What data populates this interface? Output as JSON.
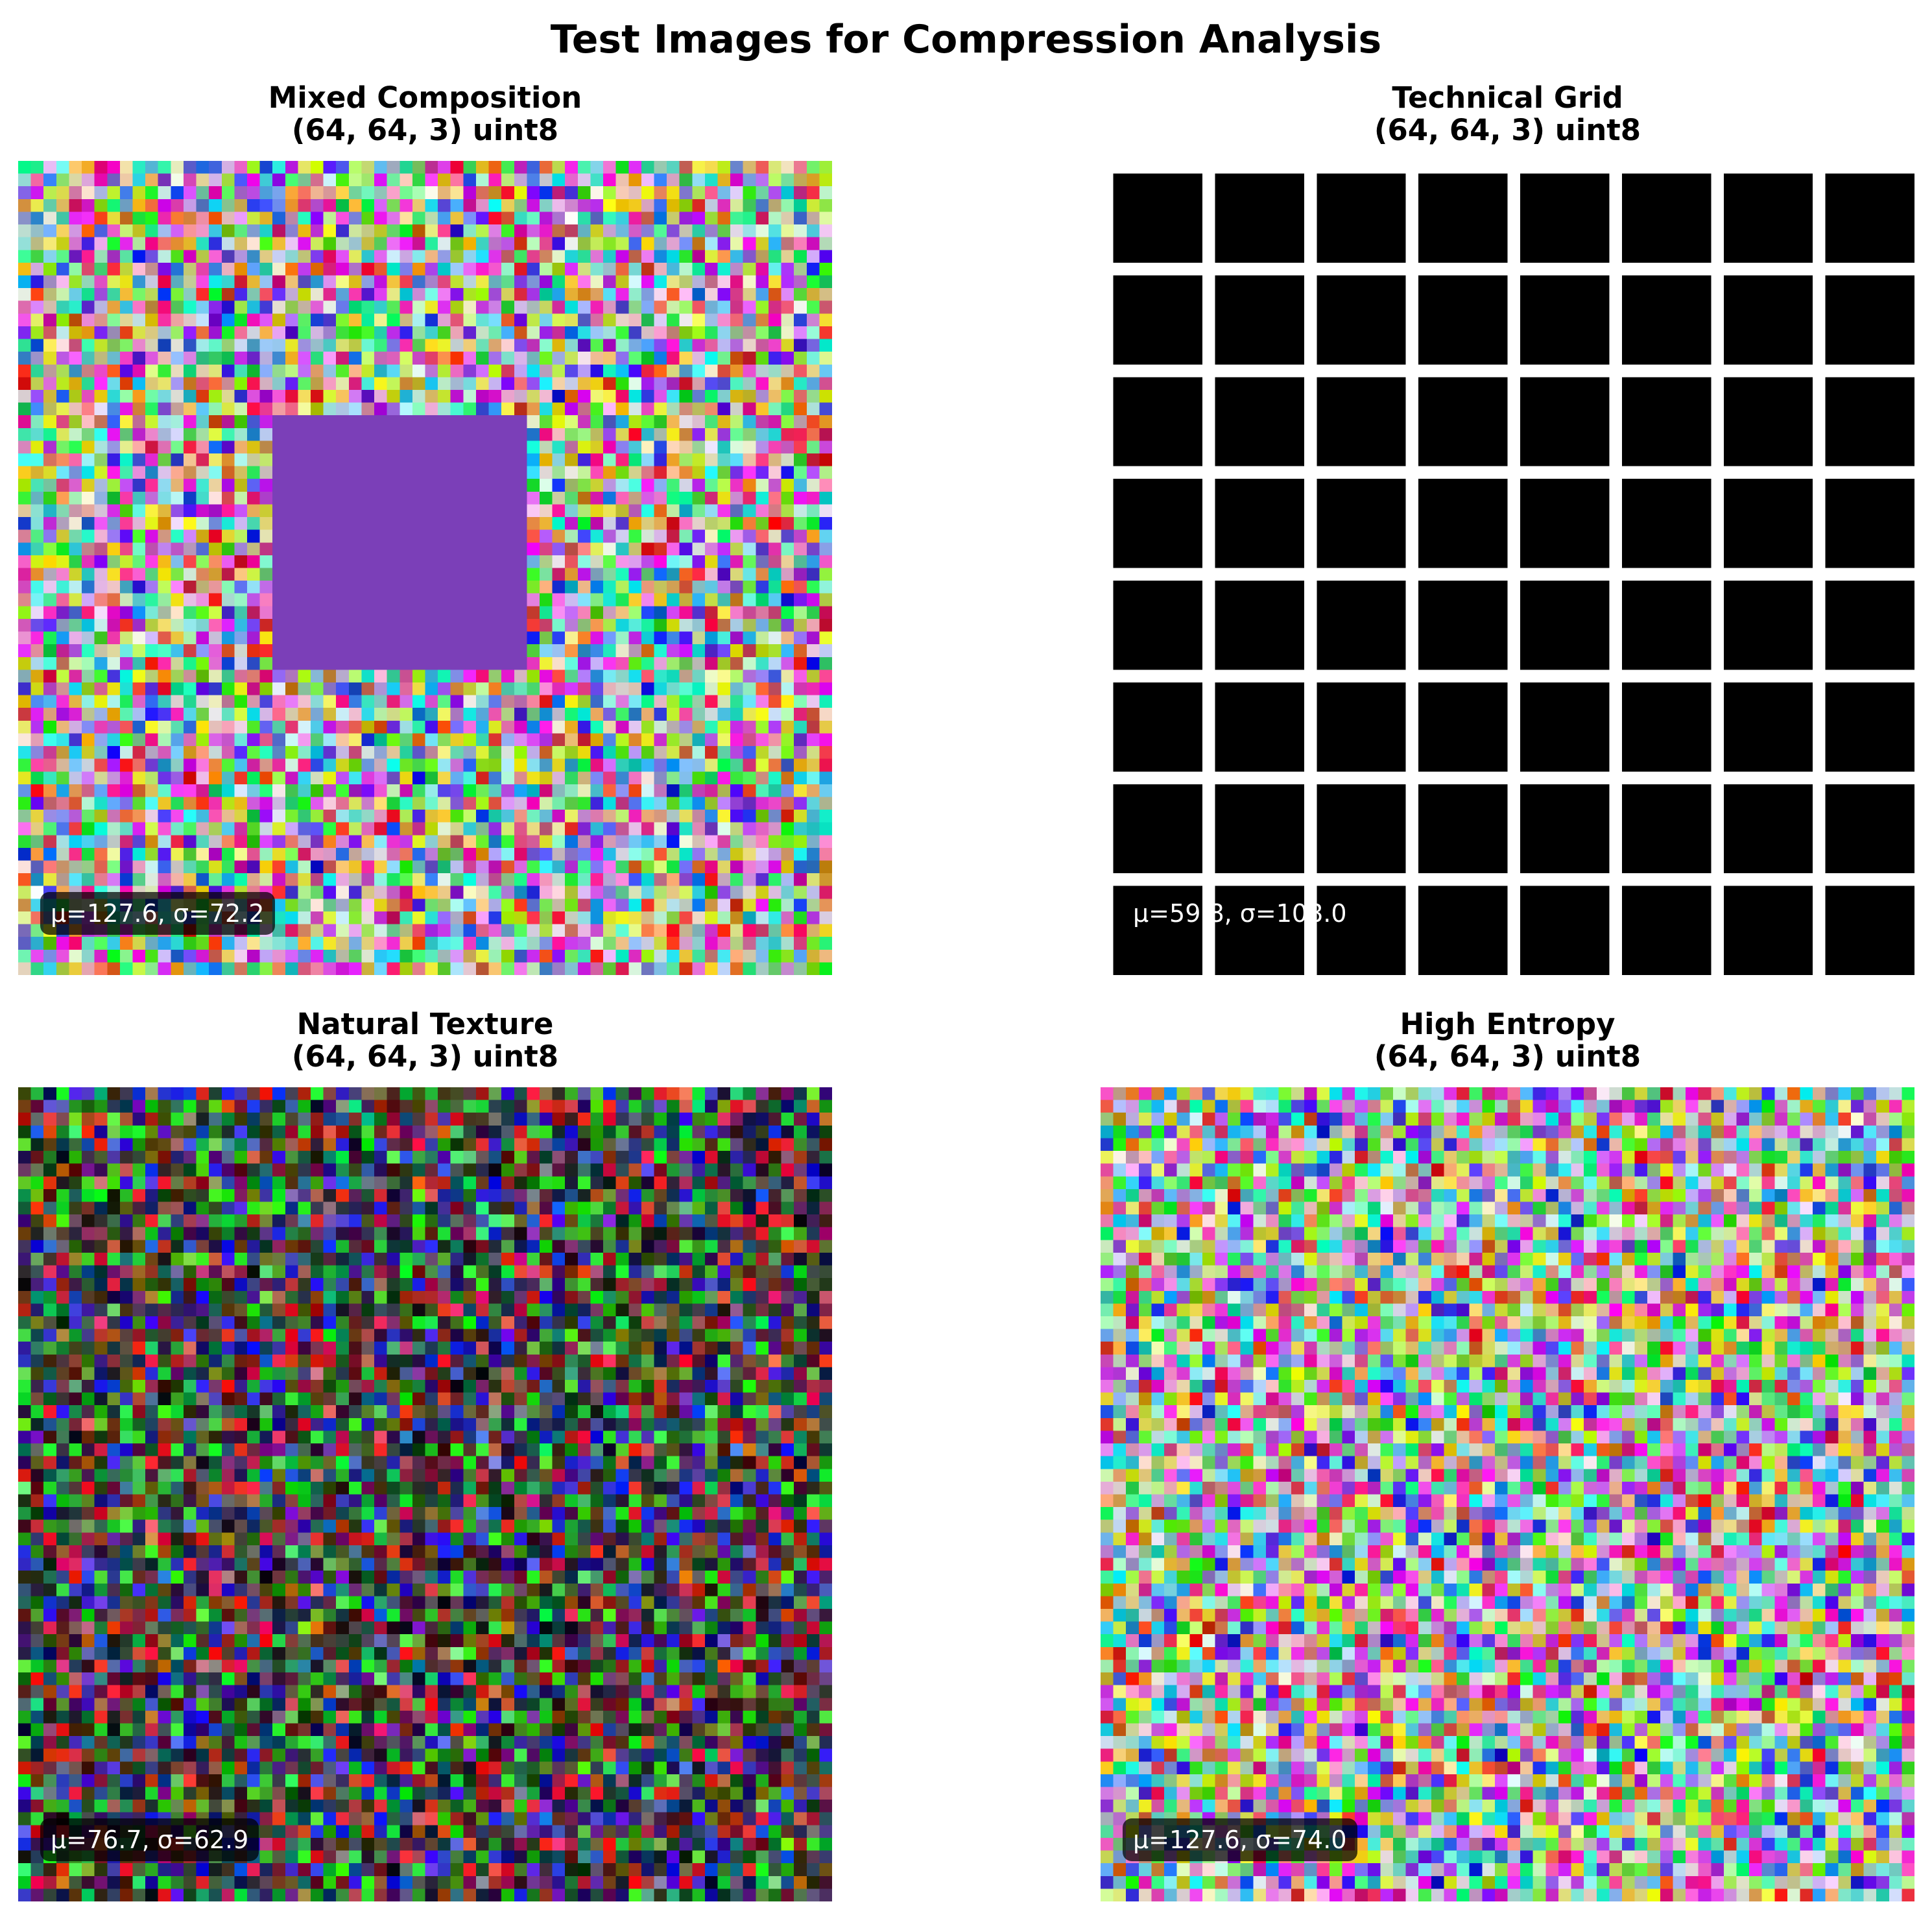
{
  "figure": {
    "title": "Test Images for Compression Analysis"
  },
  "panels": [
    {
      "title": "Mixed Composition",
      "subtitle": "(64, 64, 3) uint8",
      "stats": "μ=127.6, σ=72.2",
      "kind": "noise-with-block",
      "block_color": "#7b3fb8",
      "background": "random-bright-noise"
    },
    {
      "title": "Technical Grid",
      "subtitle": "(64, 64, 3) uint8",
      "stats": "μ=59.8, σ=108.0",
      "kind": "grid",
      "grid_cells_per_side": 8,
      "cell_color": "#000000",
      "line_color": "#ffffff"
    },
    {
      "title": "Natural Texture",
      "subtitle": "(64, 64, 3) uint8",
      "stats": "μ=76.7, σ=62.9",
      "kind": "noise-dark",
      "background": "random-dark-noise"
    },
    {
      "title": "High Entropy",
      "subtitle": "(64, 64, 3) uint8",
      "stats": "μ=127.6, σ=74.0",
      "kind": "noise-bright",
      "background": "random-bright-noise"
    }
  ]
}
